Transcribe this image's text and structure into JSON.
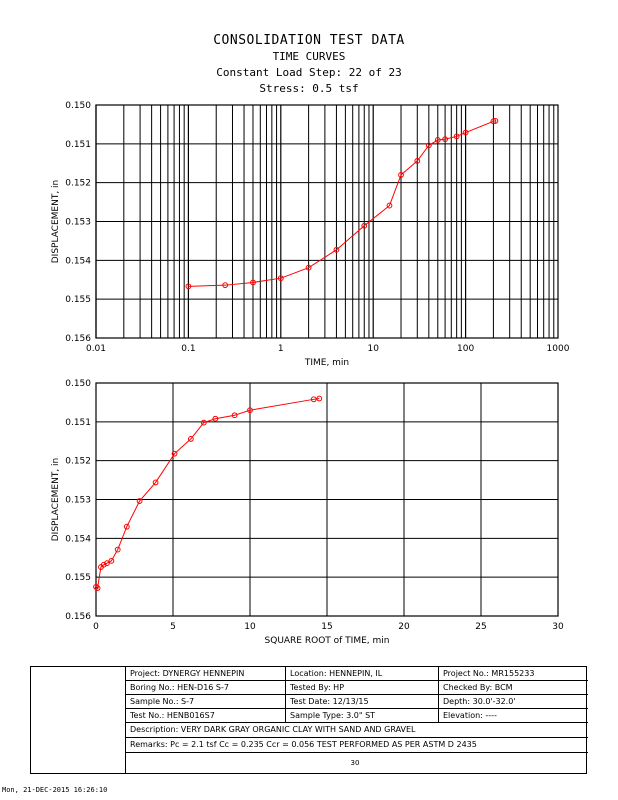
{
  "header": {
    "title": "CONSOLIDATION TEST DATA",
    "subtitle": "TIME CURVES",
    "load_step": "Constant Load Step: 22 of 23",
    "stress": "Stress: 0.5 tsf"
  },
  "chart_data": [
    {
      "type": "line",
      "xscale": "log",
      "xlabel": "TIME, min",
      "ylabel": "DISPLACEMENT, in",
      "xlim": [
        0.01,
        1000
      ],
      "ylim": [
        0.15,
        0.156
      ],
      "y_inverted": true,
      "xticks": [
        "0.01",
        "0.1",
        "1",
        "10",
        "100",
        "1000"
      ],
      "yticks": [
        "0.150",
        "0.151",
        "0.152",
        "0.153",
        "0.154",
        "0.155",
        "0.156"
      ],
      "color": "#ff0000",
      "x": [
        0.1,
        0.25,
        0.5,
        1,
        2,
        4,
        8,
        15,
        20,
        30,
        40,
        50,
        60,
        80,
        100,
        200,
        210
      ],
      "y": [
        0.15467,
        0.15464,
        0.15457,
        0.15446,
        0.15419,
        0.15373,
        0.15311,
        0.15259,
        0.1518,
        0.15144,
        0.15104,
        0.1509,
        0.15088,
        0.15081,
        0.15071,
        0.15042,
        0.15041
      ]
    },
    {
      "type": "line",
      "xscale": "linear",
      "xlabel": "SQUARE ROOT of TIME, min",
      "ylabel": "DISPLACEMENT, in",
      "xlim": [
        0,
        30
      ],
      "ylim": [
        0.15,
        0.156
      ],
      "y_inverted": true,
      "xticks": [
        "0",
        "5",
        "10",
        "15",
        "20",
        "25",
        "30"
      ],
      "yticks": [
        "0.150",
        "0.151",
        "0.152",
        "0.153",
        "0.154",
        "0.155",
        "0.156"
      ],
      "color": "#ff0000",
      "x": [
        0.0,
        0.1,
        0.32,
        0.5,
        0.71,
        1.0,
        1.41,
        2.0,
        2.83,
        3.87,
        5.1,
        6.16,
        7.0,
        7.75,
        9.0,
        10.0,
        14.14,
        14.5
      ],
      "y": [
        0.15525,
        0.15528,
        0.15474,
        0.15468,
        0.15464,
        0.15458,
        0.15429,
        0.1537,
        0.15304,
        0.15256,
        0.15182,
        0.15144,
        0.15102,
        0.15092,
        0.15083,
        0.1507,
        0.15042,
        0.1504
      ]
    }
  ],
  "info": {
    "project": "Project: DYNERGY HENNEPIN",
    "location": "Location: HENNEPIN, IL",
    "project_no": "Project No.: MR155233",
    "boring": "Boring No.: HEN-D16 S-7",
    "tested_by": "Tested By: HP",
    "checked_by": "Checked By: BCM",
    "sample": "Sample No.: S-7",
    "test_date": "Test Date: 12/13/15",
    "depth": "Depth: 30.0'-32.0'",
    "test_no": "Test No.: HENB016S7",
    "sample_type": "Sample Type: 3.0\" ST",
    "elevation": "Elevation: ----",
    "description": "Description: VERY DARK GRAY ORGANIC CLAY WITH SAND AND GRAVEL",
    "remarks": "Remarks: Pc = 2.1 tsf Cc = 0.235 Ccr = 0.056 TEST PERFORMED AS PER ASTM D 2435",
    "footer_mark": "30"
  },
  "timestamp": "Mon, 21-DEC-2015 16:26:10"
}
